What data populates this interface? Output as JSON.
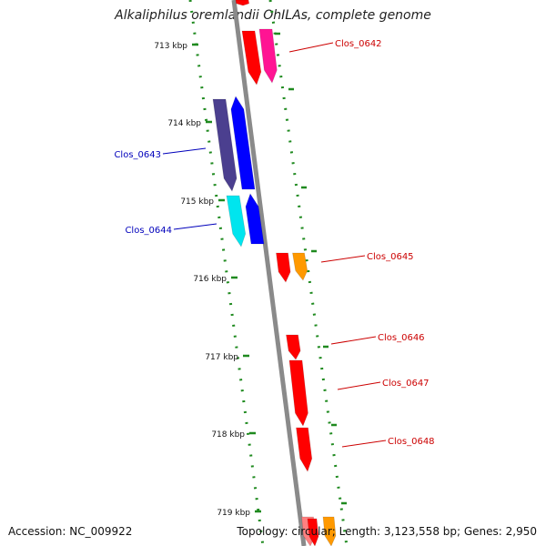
{
  "title": "Alkaliphilus oremlandii OhILAs, complete genome",
  "footer": {
    "accession": "Accession: NC_009922",
    "topology": "Topology: circular; Length: 3,123,558 bp; Genes: 2,950"
  },
  "tick_labels": [
    "713 kbp",
    "714 kbp",
    "715 kbp",
    "716 kbp",
    "717 kbp",
    "718 kbp",
    "719 kbp"
  ],
  "genes": [
    {
      "label": "Clos_0642",
      "color": "#cc0000"
    },
    {
      "label": "Clos_0643",
      "color": "#0000bb"
    },
    {
      "label": "Clos_0644",
      "color": "#0000bb"
    },
    {
      "label": "Clos_0645",
      "color": "#cc0000"
    },
    {
      "label": "Clos_0646",
      "color": "#cc0000"
    },
    {
      "label": "Clos_0647",
      "color": "#cc0000"
    },
    {
      "label": "Clos_0648",
      "color": "#cc0000"
    }
  ],
  "colors": {
    "backbone": "#8a8a8a",
    "tick": "#1f8a1f",
    "red": "#ff0000",
    "pink": "#ff1493",
    "orange": "#ff9900",
    "navy": "#4b3f8f",
    "blue": "#0000ff",
    "cyan": "#00e5ee"
  }
}
